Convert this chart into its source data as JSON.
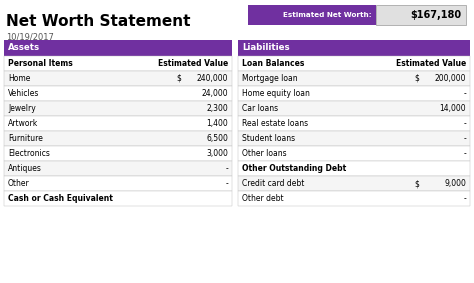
{
  "title": "Net Worth Statement",
  "date": "10/19/2017",
  "net_worth_label": "Estimated Net Worth:",
  "net_worth_value": "$167,180",
  "purple_color": "#7030A0",
  "net_worth_label_bg": "#7030A0",
  "net_worth_value_bg": "#E0E0E0",
  "table_border_color": "#BBBBBB",
  "assets_header": "Assets",
  "assets_col1": "Personal Items",
  "assets_col2": "Estimated Value",
  "assets_rows": [
    [
      "Home",
      "$",
      "240,000"
    ],
    [
      "Vehicles",
      "",
      "24,000"
    ],
    [
      "Jewelry",
      "",
      "2,300"
    ],
    [
      "Artwork",
      "",
      "1,400"
    ],
    [
      "Furniture",
      "",
      "6,500"
    ],
    [
      "Electronics",
      "",
      "3,000"
    ],
    [
      "Antiques",
      "",
      "-"
    ],
    [
      "Other",
      "",
      "-"
    ]
  ],
  "assets_bold_last": "Cash or Cash Equivalent",
  "liabilities_header": "Liabilities",
  "liabilities_col1": "Loan Balances",
  "liabilities_col2": "Estimated Value",
  "liabilities_rows": [
    [
      "Mortgage loan",
      "$",
      "200,000"
    ],
    [
      "Home equity loan",
      "",
      "-"
    ],
    [
      "Car loans",
      "",
      "14,000"
    ],
    [
      "Real estate loans",
      "",
      "-"
    ],
    [
      "Student loans",
      "",
      "-"
    ],
    [
      "Other loans",
      "",
      "-"
    ]
  ],
  "liabilities_subheader": "Other Outstanding Debt",
  "liabilities_rows2": [
    [
      "Credit card debt",
      "$",
      "9,000"
    ],
    [
      "Other debt",
      "",
      "-"
    ]
  ],
  "bg_color": "#FFFFFF",
  "fig_w": 4.74,
  "fig_h": 2.83,
  "dpi": 100
}
